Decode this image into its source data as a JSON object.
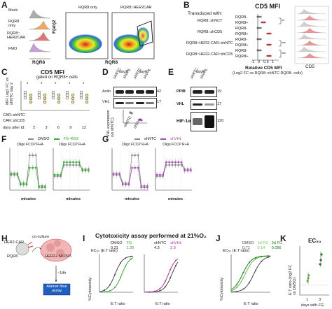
{
  "panelA": {
    "letter": "A",
    "hist_labels": [
      "Mock",
      "RQR8\nonly",
      "RQR8::\nHER2CAR",
      "FMO"
    ],
    "hist_colors": [
      "#9e9e9e",
      "#e89c4a",
      "#d85f5f",
      "#c08ed0"
    ],
    "x_label": "RQR8",
    "y_label": "F(ab)2",
    "flow_titles": [
      "RQR8 only",
      "RQR8::HER2CAR"
    ]
  },
  "panelB": {
    "letter": "B",
    "title": "CD5 MFI",
    "transduced_label": "Transduced with:",
    "groups": [
      "RQR8::shNCT",
      "RQR8::shCD5",
      "RQR8::HER2-CAR::shNTC",
      "RQR8::HER2-CAR::shCD5"
    ],
    "sub_labels": [
      "RQR8-",
      "RQR8+",
      "RQR8-",
      "RQR8+",
      "RQR8-",
      "RQR8+",
      "RQR8-",
      "RQR8+"
    ],
    "xlabel": "Relative CD5 MFI",
    "xlabel_sub": "(Log2 FC vs RQR8::shNTC RQR8- cells)",
    "xticks": [
      "-1",
      "0",
      "0.5",
      "1"
    ],
    "right_xlabel": "CD5",
    "sig": [
      "**",
      "***",
      "***"
    ]
  },
  "panelC": {
    "letter": "C",
    "title": "CD5 MFI",
    "subtitle": "gated on RQR8+ cells",
    "ylabel": "MFI Log2 FC vs shNTC day 2",
    "row_labels": [
      "CAR::shNTC",
      "CAR::shCD5"
    ],
    "days_label": "days after td:",
    "days": [
      "2",
      "3",
      "6",
      "9",
      "12"
    ]
  },
  "panelD": {
    "letter": "D",
    "days": [
      "day3",
      "day6"
    ],
    "lanes": [
      "shNTC",
      "shVHL",
      "shNTC",
      "shVHL"
    ],
    "bands": [
      "Actin",
      "VHL"
    ],
    "mw": [
      "42",
      "17"
    ],
    "quant_ylabel": "VHL expression (vs shNTC)",
    "quant_x": [
      "shNTC",
      "shVHL"
    ]
  },
  "panelE": {
    "letter": "E",
    "day": "day6",
    "lanes": [
      "shNTC",
      "shVHL"
    ],
    "bands": [
      "PPIB",
      "VHL",
      "HIF-1α"
    ],
    "mw": [
      "19",
      "17",
      "120"
    ]
  },
  "panelF": {
    "letter": "F",
    "legend": [
      "DMSO",
      "FG-4592"
    ],
    "injections": "Oligo FCCP R+A",
    "ocr_ylabel": "OCR (pmol/min)",
    "ecar_ylabel": "ECAR (mpH/min)",
    "xlabel": "minutes",
    "ocr_yticks": [
      "0",
      "20",
      "40",
      "60"
    ],
    "ecar_yticks": [
      "0",
      "5",
      "10",
      "15",
      "20"
    ],
    "xticks": [
      "0",
      "20",
      "40",
      "60",
      "80"
    ],
    "colors": {
      "dmso": "#8a8a8a",
      "fg": "#3aa83a"
    }
  },
  "panelG": {
    "letter": "G",
    "legend": [
      "shNTC",
      "shVHL"
    ],
    "injections": "Oligo FCCP R+A",
    "ocr_ylabel": "OCR (pmol/min)",
    "ecar_ylabel": "ECAR (mpH/min)",
    "xlabel": "minutes",
    "colors": {
      "ntc": "#8a8a8a",
      "vhl": "#a050b0"
    }
  },
  "panelH": {
    "letter": "H",
    "labels": [
      "HER2-CAR",
      "RQR8",
      "co-culture",
      "HER2+ SKOV3",
      "~14h",
      "Alamar blue assay"
    ]
  },
  "panelI": {
    "letter": "I",
    "header": "Cytotoxicity assay performed at 21%O₂",
    "ec50_label": "EC₅₀ (E:T ratio)",
    "groups": [
      {
        "a": "DMSO",
        "b": "FG",
        "va": "0.31",
        "vb": "1.39",
        "ca": "#444444",
        "cb": "#3aa83a"
      },
      {
        "a": "shNTC",
        "b": "shVHL",
        "va": "4.3",
        "vb": "2.0",
        "ca": "#444444",
        "cb": "#b0309a"
      }
    ],
    "ylabel": "%Cytotoxicity",
    "xlabel": "E:T ratio",
    "yticks": [
      "0",
      "20",
      "40",
      "60",
      "80",
      "100"
    ],
    "xticks": [
      "0.01",
      "0.1",
      "1",
      "10"
    ]
  },
  "panelJ": {
    "letter": "J",
    "ec50_label": "EC₅₀ (E:T ratio)",
    "legend": [
      "DMSO",
      "1d FG",
      "3d FG"
    ],
    "values": [
      "0.71",
      "0.14",
      "0.086"
    ],
    "colors": [
      "#444444",
      "#6abf4b",
      "#1f7a1f"
    ],
    "ylabel": "%Cytotoxicity",
    "xlabel": "E:T ratio"
  },
  "panelK": {
    "letter": "K",
    "title": "EC₅₀",
    "ylabel": "E:T ratio (log2 FC vs DMSO)",
    "xlabel": "days with FG",
    "xticks": [
      "1",
      "3"
    ]
  }
}
